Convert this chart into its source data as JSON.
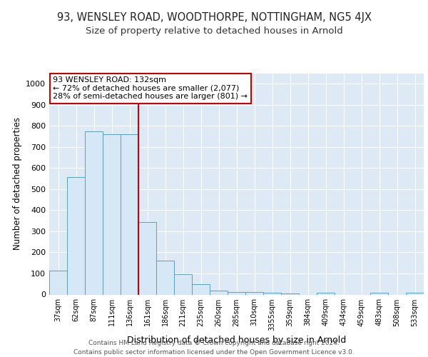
{
  "title1": "93, WENSLEY ROAD, WOODTHORPE, NOTTINGHAM, NG5 4JX",
  "title2": "Size of property relative to detached houses in Arnold",
  "xlabel": "Distribution of detached houses by size in Arnold",
  "ylabel": "Number of detached properties",
  "bar_labels": [
    "37sqm",
    "62sqm",
    "87sqm",
    "111sqm",
    "136sqm",
    "161sqm",
    "186sqm",
    "211sqm",
    "235sqm",
    "260sqm",
    "285sqm",
    "310sqm",
    "3355sqm",
    "359sqm",
    "384sqm",
    "409sqm",
    "434sqm",
    "459sqm",
    "483sqm",
    "508sqm",
    "533sqm"
  ],
  "bar_values": [
    113,
    558,
    775,
    762,
    762,
    345,
    162,
    97,
    50,
    20,
    12,
    12,
    10,
    5,
    0,
    10,
    0,
    0,
    10,
    0,
    10
  ],
  "bar_color": "#d6e8f5",
  "bar_edge_color": "#5b9fc0",
  "vline_index": 4,
  "vline_color": "#cc0000",
  "annotation_text": "93 WENSLEY ROAD: 132sqm\n← 72% of detached houses are smaller (2,077)\n28% of semi-detached houses are larger (801) →",
  "annotation_box_color": "#ffffff",
  "annotation_box_edge": "#cc0000",
  "yticks": [
    0,
    100,
    200,
    300,
    400,
    500,
    600,
    700,
    800,
    900,
    1000
  ],
  "ylim": [
    0,
    1050
  ],
  "background_color": "#ddeaf5",
  "footer_text": "Contains HM Land Registry data © Crown copyright and database right 2024.\nContains public sector information licensed under the Open Government Licence v3.0.",
  "title1_fontsize": 10.5,
  "title2_fontsize": 9.5,
  "xlabel_fontsize": 9,
  "ylabel_fontsize": 8.5,
  "footer_fontsize": 6.5
}
